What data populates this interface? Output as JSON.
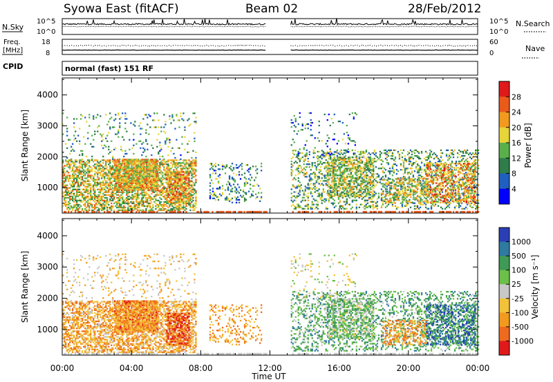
{
  "header": {
    "station": "Syowa East (fitACF)",
    "beam": "Beam 02",
    "date": "28/Feb/2012"
  },
  "panels": {
    "nsky": {
      "label": "N.Sky",
      "ticks": [
        "10^5",
        "10^0"
      ]
    },
    "nsearch": {
      "label": "N.Search",
      "ticks": [
        "10^5",
        "10^0"
      ]
    },
    "freq": {
      "label_line1": "Freq.",
      "label_line2": "[MHz]",
      "ticks": [
        "18",
        "8"
      ]
    },
    "nave": {
      "label": "Nave",
      "ticks": [
        "60",
        "0"
      ]
    },
    "cpid": {
      "label": "CPID",
      "value": "normal (fast) 151 RF"
    }
  },
  "chart_data": [
    {
      "type": "heatmap",
      "name": "power",
      "ylabel": "Slant Range [km]",
      "yticks": [
        "1000",
        "2000",
        "3000",
        "4000"
      ],
      "ylim": [
        180,
        4550
      ],
      "xlim_hours": [
        0,
        24
      ],
      "colorbar": {
        "label": "Power [dB]",
        "ticks": [
          "4",
          "8",
          "12",
          "16",
          "20",
          "24",
          "28"
        ],
        "colors": [
          "#0000ff",
          "#1f5fbe",
          "#2e7d4a",
          "#59b04a",
          "#e6d43a",
          "#f29a1f",
          "#ea5a1a",
          "#e01a1a"
        ]
      }
    },
    {
      "type": "heatmap",
      "name": "velocity",
      "ylabel": "Slant Range [km]",
      "yticks": [
        "1000",
        "2000",
        "3000",
        "4000"
      ],
      "ylim": [
        180,
        4550
      ],
      "xlim_hours": [
        0,
        24
      ],
      "colorbar": {
        "label": "Velocity [m s⁻¹]",
        "ticks": [
          "1000",
          "500",
          "100",
          "25",
          "-25",
          "-100",
          "-500",
          "-1000"
        ],
        "colors": [
          "#2a3fb5",
          "#2f7aa0",
          "#3f9a55",
          "#6cc04a",
          "#c8c8c8",
          "#f2c23a",
          "#f29a1f",
          "#ee6a1f",
          "#e01a1a"
        ]
      }
    }
  ],
  "xaxis": {
    "ticks": [
      "00:00",
      "04:00",
      "08:00",
      "12:00",
      "16:00",
      "20:00",
      "00:00"
    ],
    "label": "Time UT"
  },
  "data_gap_hours": [
    11.8,
    13.2
  ]
}
